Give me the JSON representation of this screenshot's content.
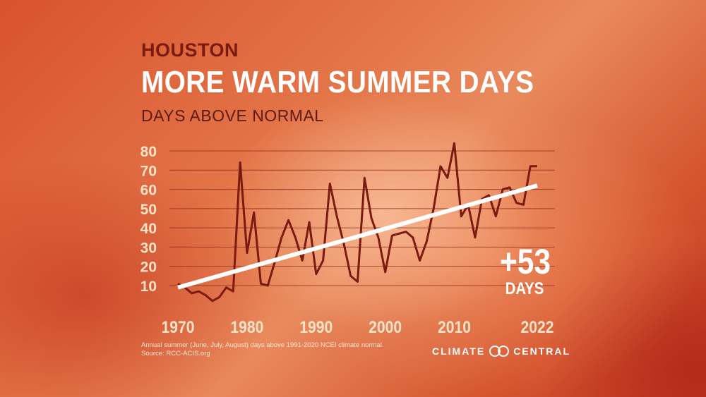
{
  "header": {
    "city": "HOUSTON",
    "title": "MORE WARM SUMMER DAYS",
    "subtitle": "DAYS ABOVE NORMAL"
  },
  "callout": {
    "value": "+53",
    "unit": "DAYS"
  },
  "footnote": {
    "line1": "Annual summer (June, July, August) days above 1991-2020 NCEI climate normal",
    "line2": "Source: RCC-ACIS.org"
  },
  "brand": {
    "left": "CLIMATE",
    "right": "CENTRAL",
    "icon": "climate-central-logo-icon"
  },
  "colors": {
    "line": "#7a1a10",
    "trend": "#ffffff",
    "tick_label": "#ffe3c8",
    "grid": "#8a2a18"
  },
  "chart_data": {
    "type": "line",
    "title": "MORE WARM SUMMER DAYS",
    "ylabel": "DAYS ABOVE NORMAL",
    "xlabel": "",
    "x_tick_labels": [
      "1970",
      "1980",
      "1990",
      "2000",
      "2010",
      "2022"
    ],
    "x_ticks": [
      1970,
      1980,
      1990,
      2000,
      2010,
      2022
    ],
    "y_tick_labels": [
      "10",
      "20",
      "30",
      "40",
      "50",
      "60",
      "70",
      "80"
    ],
    "y_ticks": [
      10,
      20,
      30,
      40,
      50,
      60,
      70,
      80
    ],
    "xlim": [
      1970,
      2022
    ],
    "ylim": [
      0,
      85
    ],
    "grid": true,
    "series": [
      {
        "x": [
          1970,
          1971,
          1972,
          1973,
          1974,
          1975,
          1976,
          1977,
          1978,
          1979,
          1980,
          1981,
          1982,
          1983,
          1984,
          1985,
          1986,
          1987,
          1988,
          1989,
          1990,
          1991,
          1992,
          1993,
          1994,
          1995,
          1996,
          1997,
          1998,
          1999,
          2000,
          2001,
          2002,
          2003,
          2004,
          2005,
          2006,
          2007,
          2008,
          2009,
          2010,
          2011,
          2012,
          2013,
          2014,
          2015,
          2016,
          2017,
          2018,
          2019,
          2020,
          2021,
          2022
        ],
        "values": [
          11,
          9,
          6,
          7,
          5,
          2,
          4,
          9,
          7,
          74,
          27,
          48,
          11,
          10,
          22,
          35,
          44,
          35,
          23,
          43,
          16,
          23,
          63,
          46,
          32,
          15,
          12,
          66,
          45,
          35,
          17,
          36,
          37,
          38,
          35,
          23,
          33,
          50,
          72,
          66,
          84,
          46,
          52,
          35,
          55,
          57,
          46,
          60,
          61,
          53,
          52,
          72,
          72
        ]
      },
      {
        "type": "trend",
        "x": [
          1970,
          2022
        ],
        "values": [
          9,
          62
        ]
      }
    ]
  }
}
